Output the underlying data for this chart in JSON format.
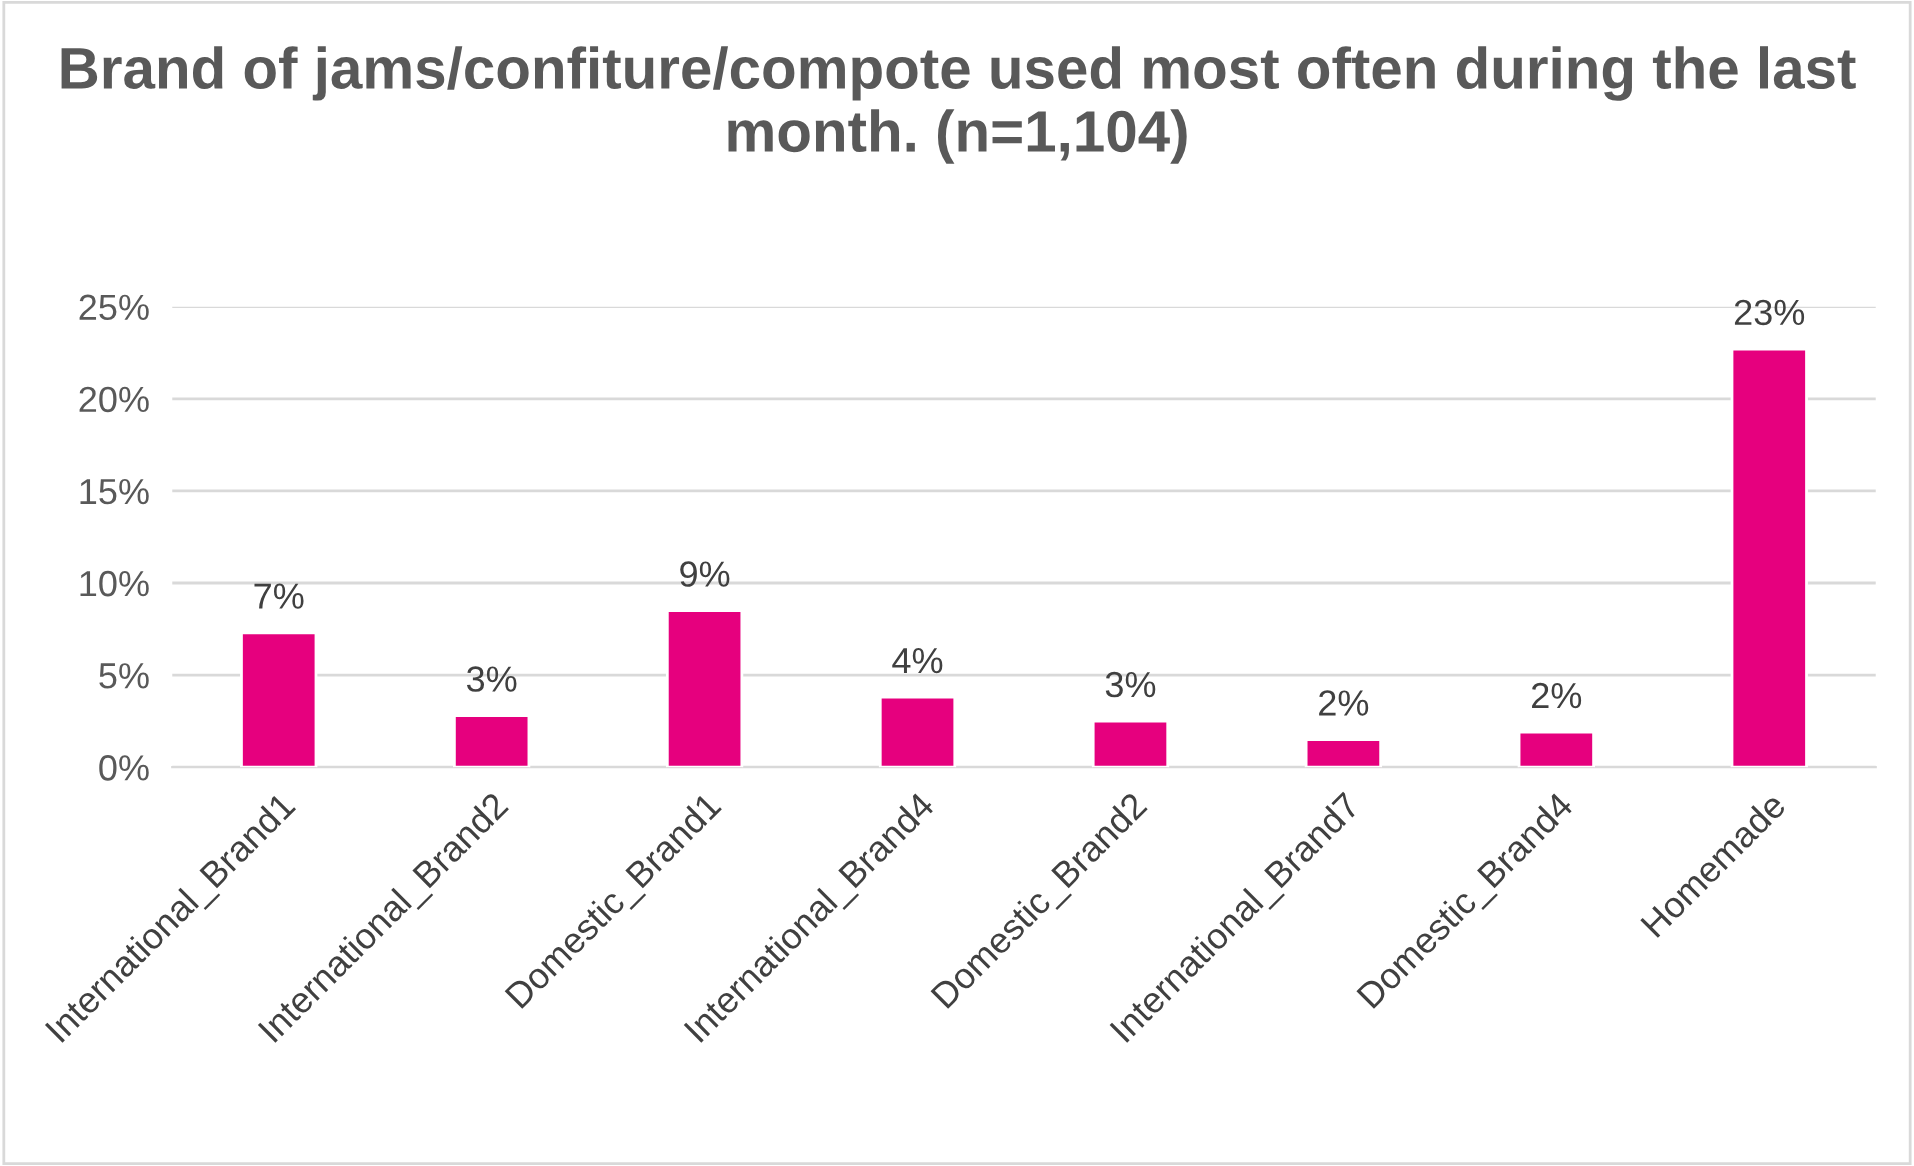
{
  "chart_data": {
    "type": "bar",
    "title": "Brand of jams/confiture/compote used most often during the last month. (n=1,104)",
    "categories": [
      "International_Brand1",
      "International_Brand2",
      "Domestic_Brand1",
      "International_Brand4",
      "Domestic_Brand2",
      "International_Brand7",
      "Domestic_Brand4",
      "Homemade"
    ],
    "values": [
      7.3,
      2.8,
      8.5,
      3.8,
      2.5,
      1.5,
      1.9,
      22.7
    ],
    "value_labels": [
      "7%",
      "3%",
      "9%",
      "4%",
      "3%",
      "2%",
      "2%",
      "23%"
    ],
    "color": "#e6007e",
    "ylim": [
      0,
      25
    ],
    "yticks": [
      {
        "value": 0,
        "label": "0%"
      },
      {
        "value": 5,
        "label": "5%"
      },
      {
        "value": 10,
        "label": "10%"
      },
      {
        "value": 15,
        "label": "15%"
      },
      {
        "value": 20,
        "label": "20%"
      },
      {
        "value": 25,
        "label": "25%"
      }
    ],
    "grid": "y"
  }
}
